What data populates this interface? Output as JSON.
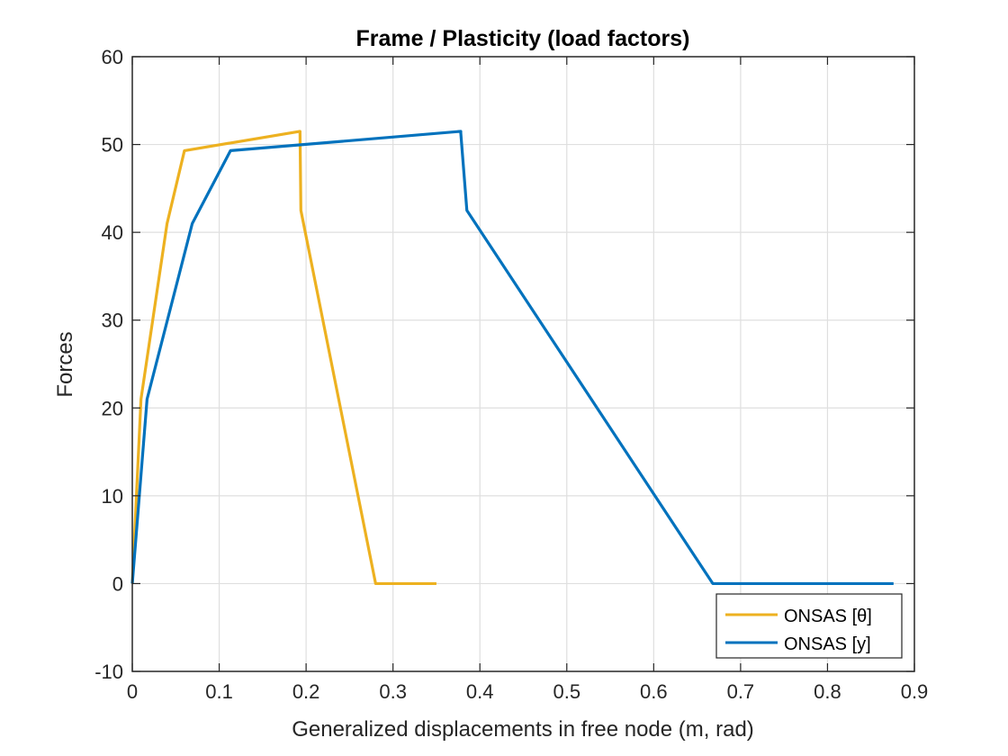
{
  "chart_data": {
    "type": "line",
    "title": "Frame / Plasticity (load factors)",
    "xlabel": "Generalized displacements in free node (m, rad)",
    "ylabel": "Forces",
    "xlim": [
      0,
      0.9
    ],
    "ylim": [
      -10,
      60
    ],
    "xticks": [
      0,
      0.1,
      0.2,
      0.3,
      0.4,
      0.5,
      0.6,
      0.7,
      0.8,
      0.9
    ],
    "xtick_labels": [
      "0",
      "0.1",
      "0.2",
      "0.3",
      "0.4",
      "0.5",
      "0.6",
      "0.7",
      "0.8",
      "0.9"
    ],
    "yticks": [
      -10,
      0,
      10,
      20,
      30,
      40,
      50,
      60
    ],
    "ytick_labels": [
      "-10",
      "0",
      "10",
      "20",
      "30",
      "40",
      "50",
      "60"
    ],
    "grid": true,
    "legend_position": "bottom-right",
    "series": [
      {
        "name": "ONSAS [θ]",
        "color": "#EDB120",
        "x": [
          0,
          0.01,
          0.04,
          0.06,
          0.193,
          0.193,
          0.194,
          0.28,
          0.35
        ],
        "y": [
          0,
          21,
          41,
          49.3,
          51.5,
          51.3,
          42.5,
          0,
          0
        ]
      },
      {
        "name": "ONSAS [y]",
        "color": "#0072BD",
        "x": [
          0,
          0.017,
          0.069,
          0.113,
          0.378,
          0.378,
          0.385,
          0.668,
          0.876
        ],
        "y": [
          0,
          21,
          41,
          49.3,
          51.5,
          51.3,
          42.5,
          0,
          0
        ]
      }
    ]
  }
}
